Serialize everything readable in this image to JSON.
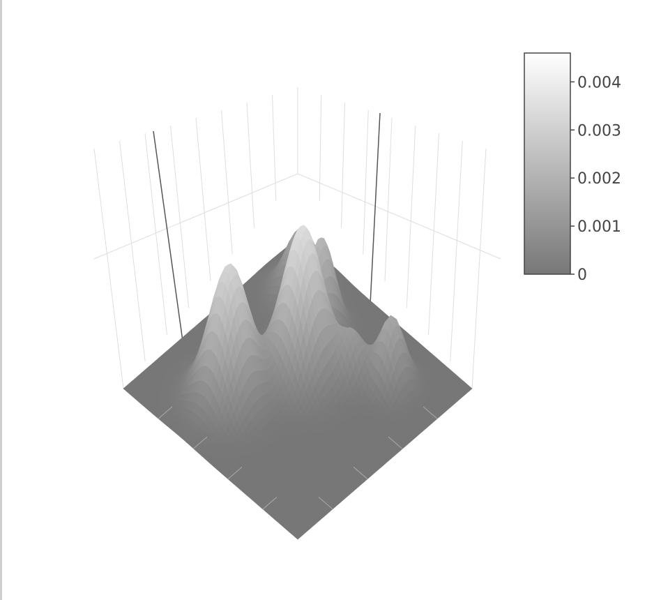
{
  "chart_data": {
    "type": "surface",
    "title": "",
    "colorscale": [
      "#777777",
      "#ffffff"
    ],
    "colorbar": {
      "ticks": [
        {
          "value": 0,
          "label": "0"
        },
        {
          "value": 0.001,
          "label": "0.001"
        },
        {
          "value": 0.002,
          "label": "0.002"
        },
        {
          "value": 0.003,
          "label": "0.003"
        },
        {
          "value": 0.004,
          "label": "0.004"
        }
      ],
      "range": [
        0,
        0.0046
      ]
    },
    "grid": true,
    "axis_tick_labels_visible": false,
    "zlim": [
      -0.001,
      0.0095
    ],
    "peaks": [
      {
        "name": "left peak",
        "u": 0.27,
        "v": 0.66,
        "height": 0.0037,
        "width": 0.085
      },
      {
        "name": "center-front peak",
        "u": 0.56,
        "v": 0.53,
        "height": 0.0041,
        "width": 0.085
      },
      {
        "name": "rear peak",
        "u": 0.82,
        "v": 0.8,
        "height": 0.0018,
        "width": 0.07
      },
      {
        "name": "center-back peak",
        "u": 0.76,
        "v": 0.62,
        "height": 0.0024,
        "width": 0.055
      },
      {
        "name": "right peak",
        "u": 0.78,
        "v": 0.24,
        "height": 0.0019,
        "width": 0.055
      },
      {
        "name": "right shoulder",
        "u": 0.68,
        "v": 0.36,
        "height": 0.0012,
        "width": 0.05
      }
    ]
  }
}
